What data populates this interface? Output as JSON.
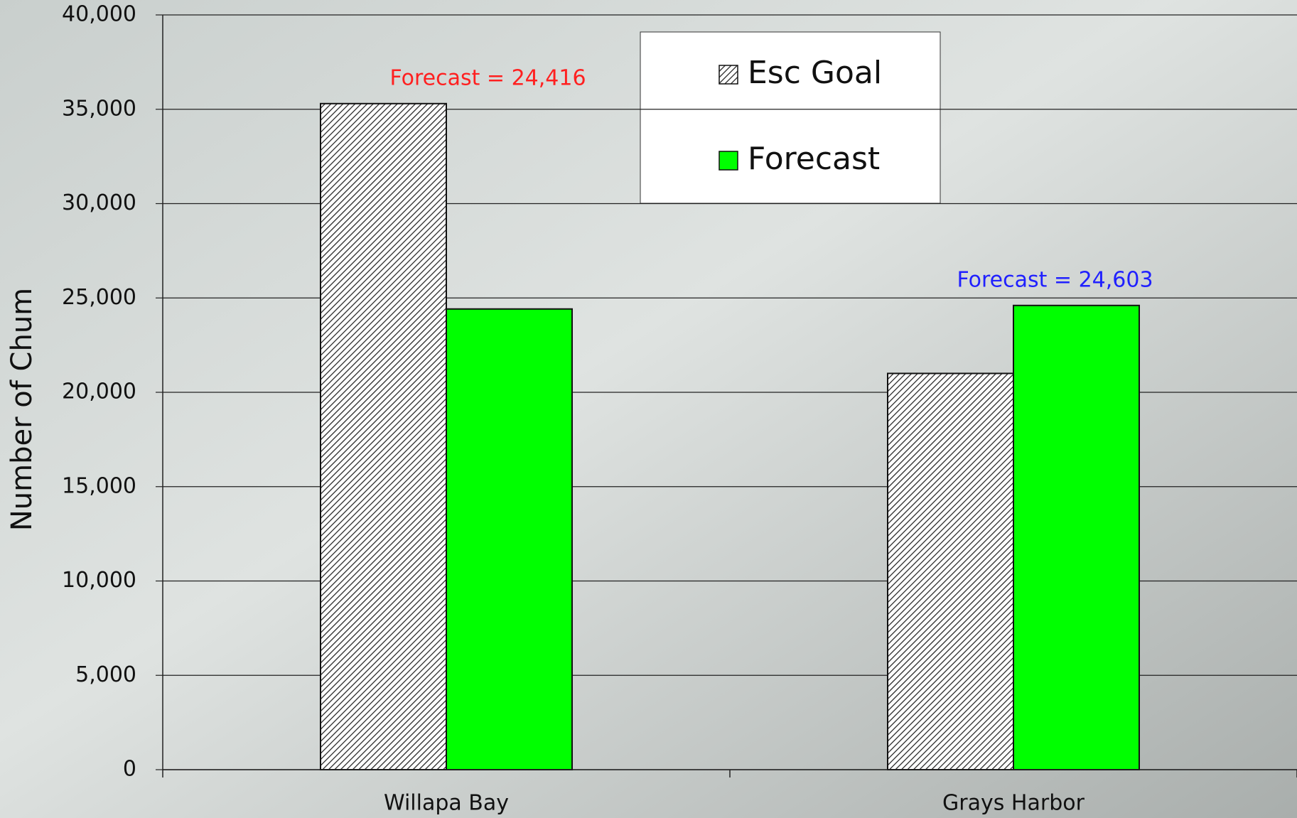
{
  "chart_data": {
    "type": "bar",
    "y_label": "Number of Chum",
    "categories": [
      "Willapa Bay",
      "Grays Harbor"
    ],
    "series": [
      {
        "name": "Esc Goal",
        "color": "#ffffff",
        "pattern": "hatch",
        "values": [
          35300,
          21000
        ]
      },
      {
        "name": "Forecast",
        "color": "#00ff00",
        "values": [
          24416,
          24603
        ],
        "value_labels": [
          "Forecast = 24,416",
          "Forecast = 24,603"
        ],
        "value_label_colors": [
          "#ff2020",
          "#2020ff"
        ]
      }
    ],
    "ylim": [
      0,
      40000
    ],
    "yticks": [
      0,
      {
        "value": 5000,
        "label": "5,000"
      },
      {
        "value": 10000,
        "label": "10,000"
      },
      {
        "value": 15000,
        "label": "15,000"
      },
      {
        "value": 20000,
        "label": "20,000"
      },
      {
        "value": 25000,
        "label": "25,000"
      },
      {
        "value": 30000,
        "label": "30,000"
      },
      {
        "value": 35000,
        "label": "35,000"
      },
      {
        "value": 40000,
        "label": "40,000"
      }
    ],
    "grid": true,
    "legend": "top-center"
  }
}
